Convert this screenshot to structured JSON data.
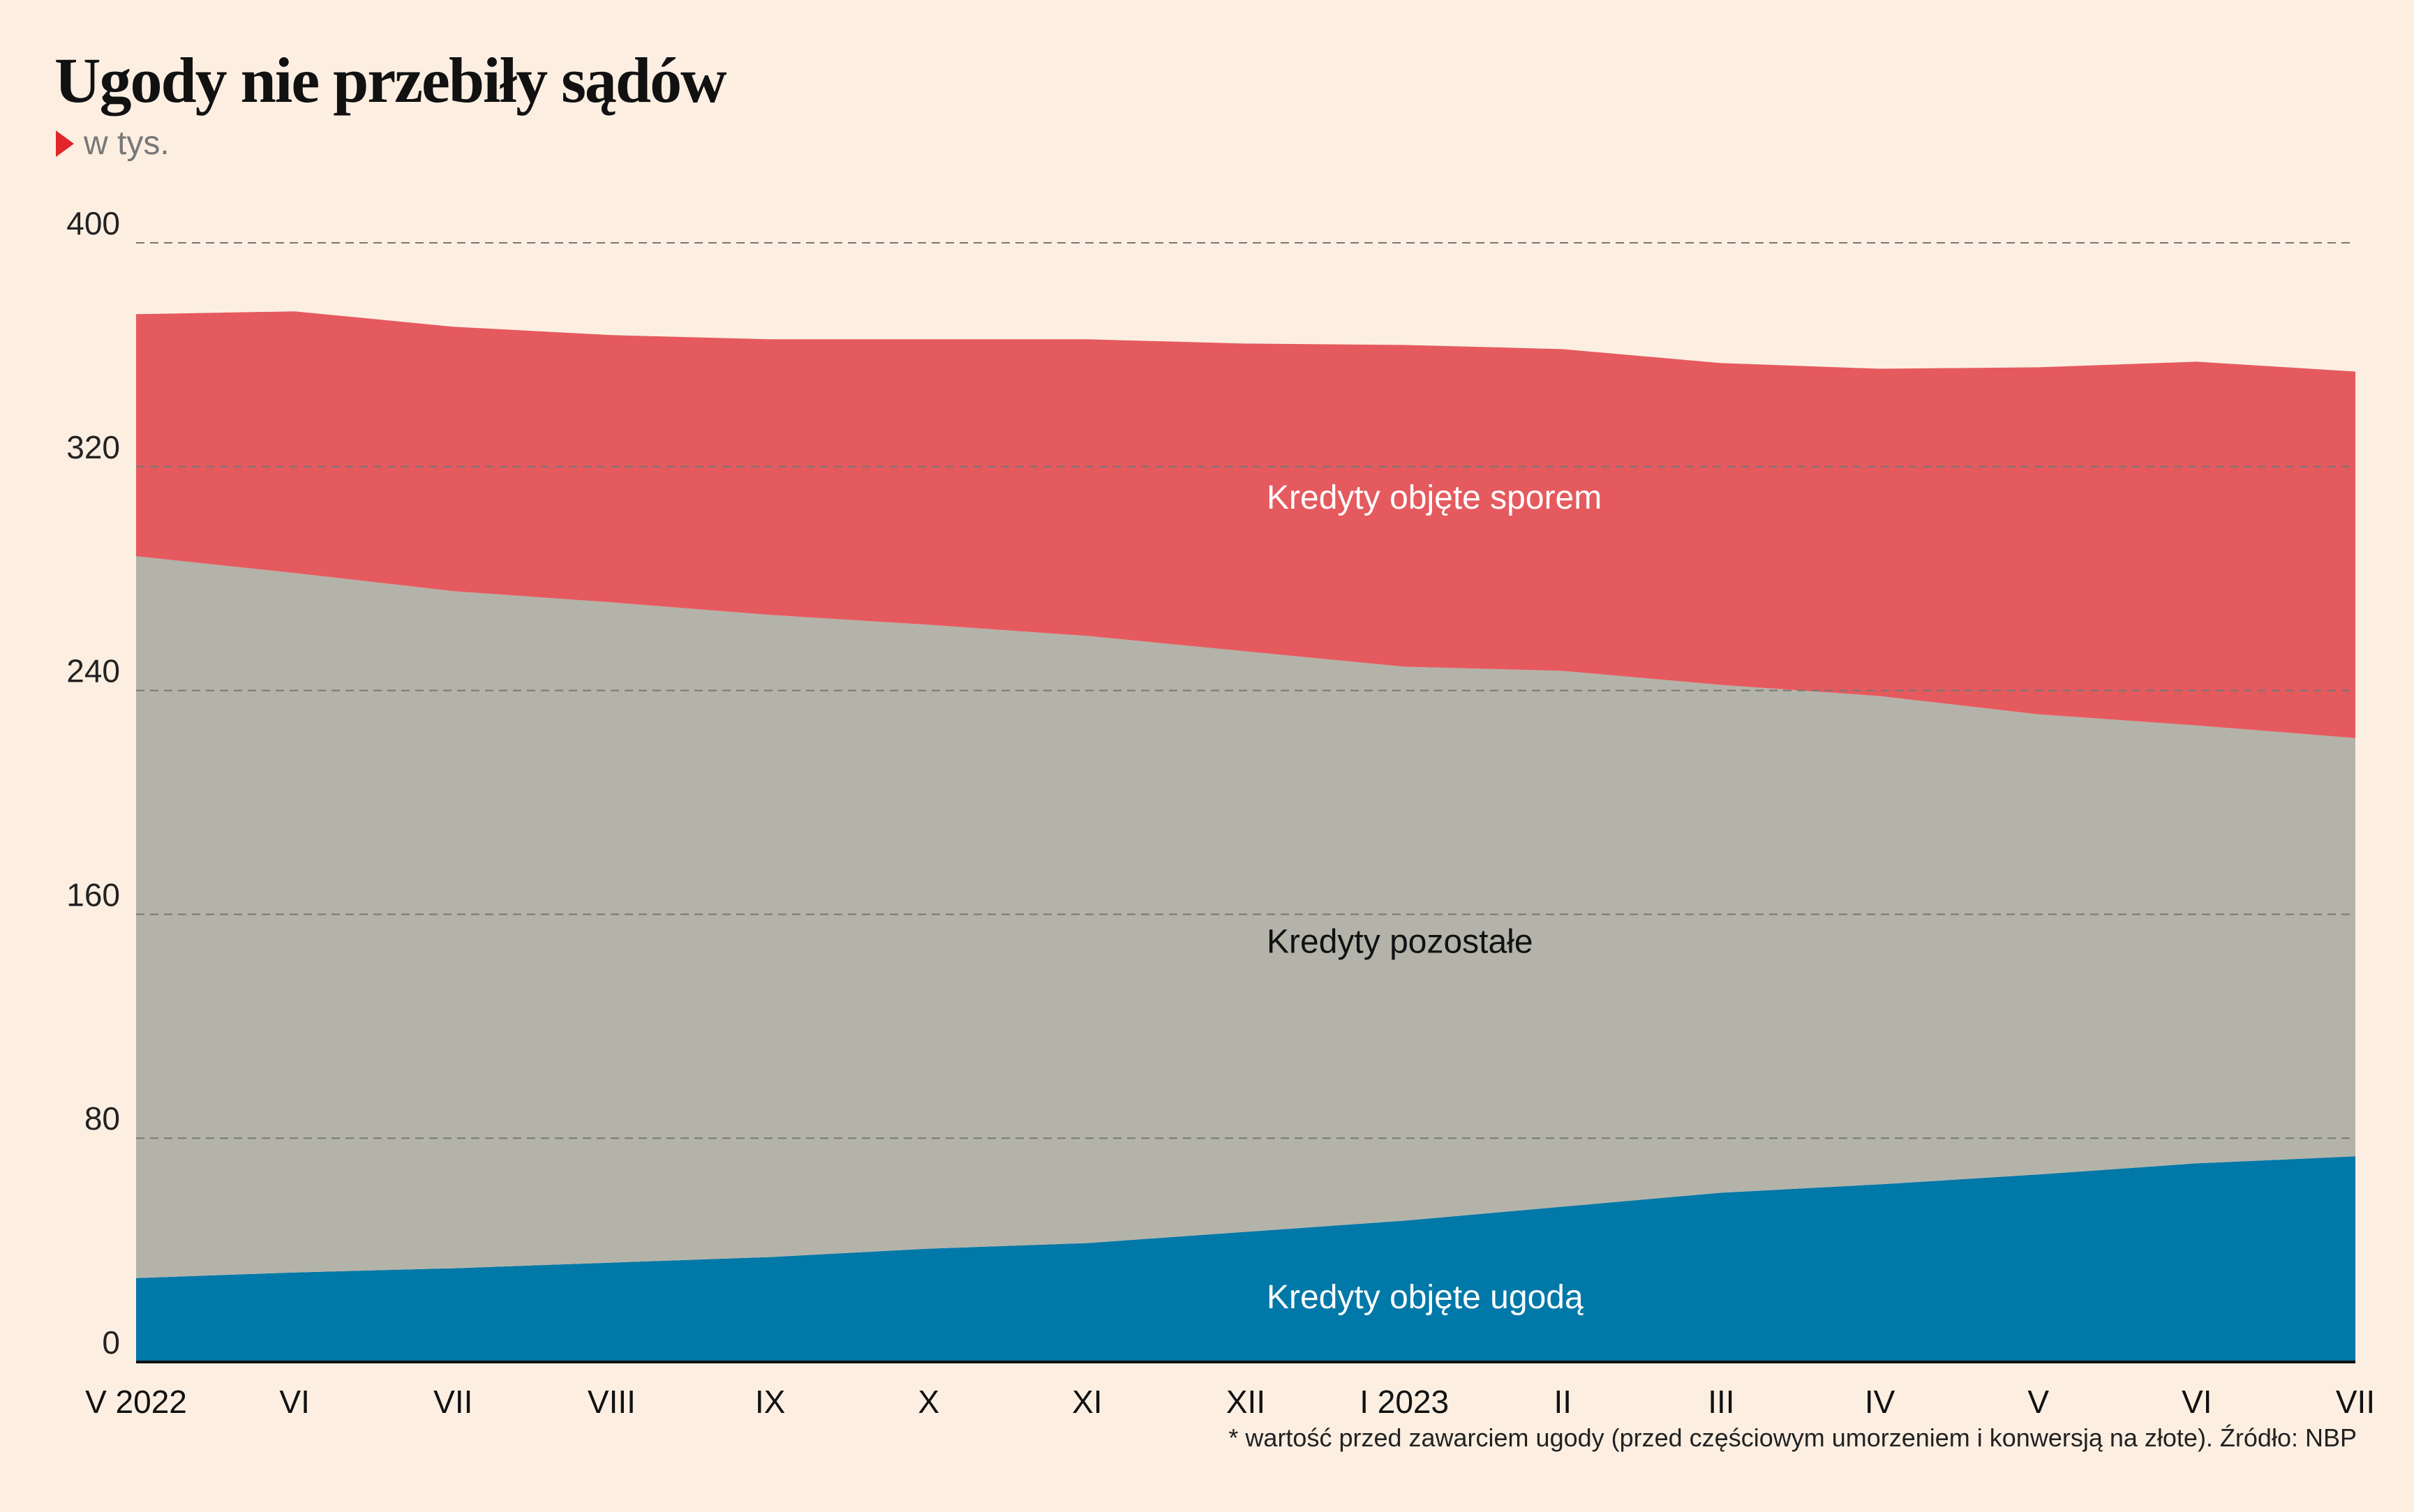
{
  "colors": {
    "background": "#fcefe2",
    "spor": "#e55a5e",
    "pozostale": "#b4b3aa",
    "ugoda": "#0078a8",
    "grid": "#777777",
    "marker": "#e0262b"
  },
  "header": {
    "title": "Ugody nie przebiły sądów",
    "subtitle": "w tys."
  },
  "footer": {
    "note": "* wartość przed zawarciem ugody (przed częściowym umorzeniem i konwersją na złote). Źródło: NBP"
  },
  "chart_data": {
    "type": "area",
    "stacked": true,
    "title": "Ugody nie przebiły sądów",
    "subtitle": "w tys.",
    "categories": [
      "V 2022",
      "VI",
      "VII",
      "VIII",
      "IX",
      "X",
      "XI",
      "XII",
      "I 2023",
      "II",
      "III",
      "IV",
      "V",
      "VI",
      "VII"
    ],
    "yticks": [
      0,
      80,
      160,
      240,
      320,
      400
    ],
    "ylim": [
      0,
      400
    ],
    "grid": true,
    "series": [
      {
        "name": "Kredyty objęte ugodą",
        "color": "#0078a8",
        "label_color": "#ffffff",
        "values": [
          30,
          32,
          33.5,
          35.5,
          37.5,
          40.5,
          42.5,
          46.5,
          50.5,
          55.5,
          60.5,
          63.5,
          67,
          71,
          73.5
        ]
      },
      {
        "name": "Kredyty pozostałe",
        "color": "#b4b3aa",
        "label_color": "#111111",
        "values": [
          258,
          250,
          242,
          236,
          229.5,
          223,
          217,
          207.5,
          198,
          191.5,
          181.5,
          174.5,
          164.5,
          156.5,
          149.5
        ]
      },
      {
        "name": "Kredyty objęte sporem",
        "color": "#e55a5e",
        "label_color": "#ffffff",
        "values": [
          86.5,
          93.5,
          94.5,
          95.5,
          98.5,
          102,
          106,
          110,
          115,
          115,
          115,
          117,
          124,
          130,
          131
        ]
      }
    ]
  }
}
